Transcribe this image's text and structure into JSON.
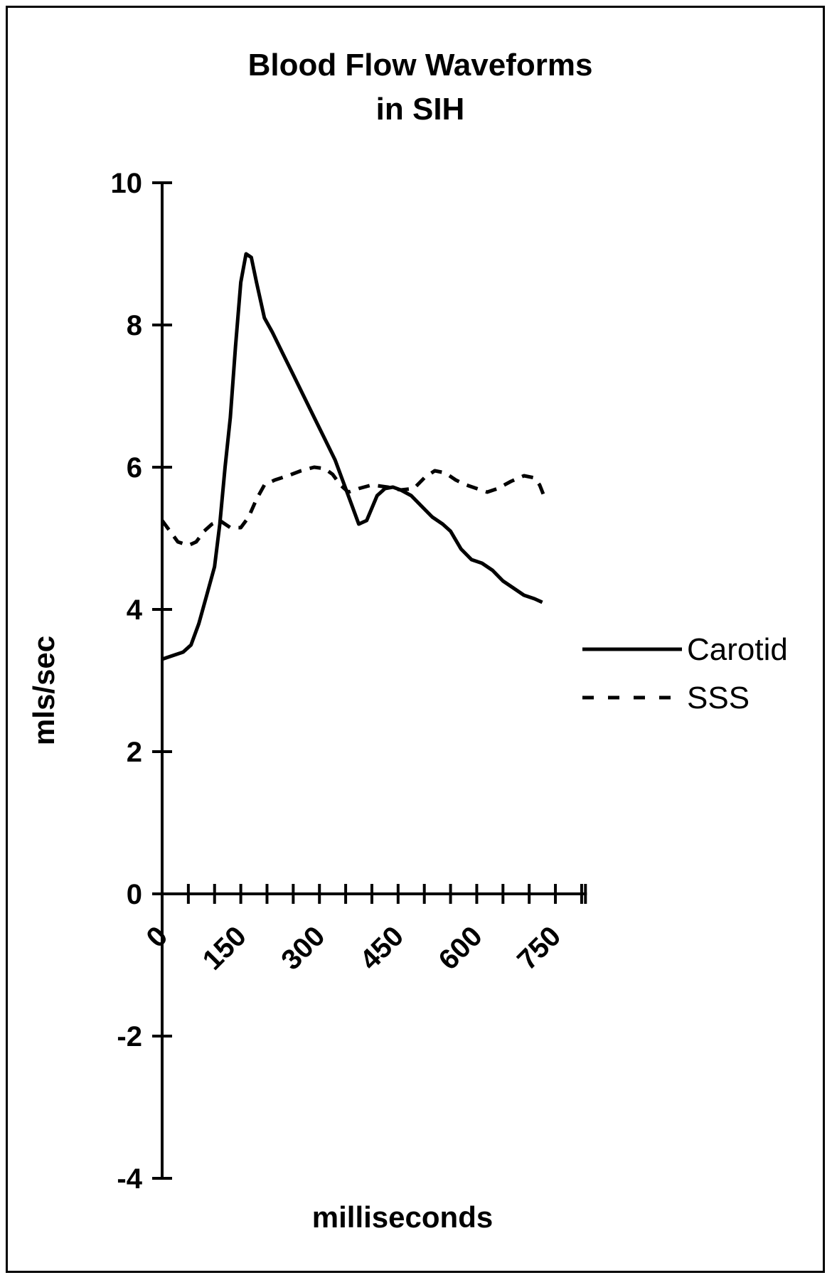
{
  "chart_data": {
    "type": "line",
    "title": [
      "Blood Flow Waveforms",
      "in SIH"
    ],
    "xlabel": "milliseconds",
    "ylabel": "mls/sec",
    "ylim": [
      -4,
      10
    ],
    "yticks": [
      10,
      8,
      6,
      4,
      2,
      0,
      -2,
      -4
    ],
    "xlim": [
      0,
      810
    ],
    "xticks_minor": [
      0,
      50,
      100,
      150,
      200,
      250,
      300,
      350,
      400,
      450,
      500,
      550,
      600,
      650,
      700,
      750,
      800
    ],
    "xtick_labels": [
      {
        "value": 0,
        "label": "0"
      },
      {
        "value": 150,
        "label": "150"
      },
      {
        "value": 300,
        "label": "300"
      },
      {
        "value": 450,
        "label": "450"
      },
      {
        "value": 600,
        "label": "600"
      },
      {
        "value": 750,
        "label": "750"
      }
    ],
    "grid": false,
    "legend_position": "right",
    "series": [
      {
        "name": "Carotid",
        "style": "solid",
        "color": "#000000",
        "points": [
          [
            0,
            3.3
          ],
          [
            20,
            3.35
          ],
          [
            40,
            3.4
          ],
          [
            55,
            3.5
          ],
          [
            70,
            3.8
          ],
          [
            85,
            4.2
          ],
          [
            100,
            4.6
          ],
          [
            110,
            5.2
          ],
          [
            120,
            6.0
          ],
          [
            130,
            6.7
          ],
          [
            140,
            7.7
          ],
          [
            150,
            8.6
          ],
          [
            160,
            9.0
          ],
          [
            170,
            8.95
          ],
          [
            180,
            8.6
          ],
          [
            195,
            8.1
          ],
          [
            210,
            7.9
          ],
          [
            230,
            7.6
          ],
          [
            250,
            7.3
          ],
          [
            270,
            7.0
          ],
          [
            290,
            6.7
          ],
          [
            310,
            6.4
          ],
          [
            330,
            6.1
          ],
          [
            345,
            5.8
          ],
          [
            360,
            5.5
          ],
          [
            375,
            5.2
          ],
          [
            390,
            5.25
          ],
          [
            410,
            5.6
          ],
          [
            425,
            5.7
          ],
          [
            440,
            5.72
          ],
          [
            455,
            5.68
          ],
          [
            475,
            5.6
          ],
          [
            495,
            5.45
          ],
          [
            515,
            5.3
          ],
          [
            535,
            5.2
          ],
          [
            550,
            5.1
          ],
          [
            570,
            4.85
          ],
          [
            590,
            4.7
          ],
          [
            610,
            4.65
          ],
          [
            630,
            4.55
          ],
          [
            650,
            4.4
          ],
          [
            670,
            4.3
          ],
          [
            690,
            4.2
          ],
          [
            710,
            4.15
          ],
          [
            725,
            4.1
          ]
        ]
      },
      {
        "name": "SSS",
        "style": "dashed",
        "color": "#000000",
        "points": [
          [
            0,
            5.25
          ],
          [
            15,
            5.1
          ],
          [
            30,
            4.95
          ],
          [
            50,
            4.9
          ],
          [
            65,
            4.95
          ],
          [
            80,
            5.1
          ],
          [
            95,
            5.2
          ],
          [
            110,
            5.25
          ],
          [
            130,
            5.15
          ],
          [
            150,
            5.15
          ],
          [
            165,
            5.3
          ],
          [
            180,
            5.55
          ],
          [
            195,
            5.75
          ],
          [
            215,
            5.82
          ],
          [
            240,
            5.88
          ],
          [
            265,
            5.95
          ],
          [
            290,
            6.0
          ],
          [
            310,
            5.98
          ],
          [
            325,
            5.9
          ],
          [
            340,
            5.75
          ],
          [
            355,
            5.65
          ],
          [
            375,
            5.7
          ],
          [
            400,
            5.75
          ],
          [
            430,
            5.72
          ],
          [
            455,
            5.68
          ],
          [
            480,
            5.7
          ],
          [
            500,
            5.85
          ],
          [
            520,
            5.95
          ],
          [
            540,
            5.92
          ],
          [
            560,
            5.82
          ],
          [
            580,
            5.75
          ],
          [
            600,
            5.7
          ],
          [
            620,
            5.65
          ],
          [
            640,
            5.7
          ],
          [
            665,
            5.8
          ],
          [
            690,
            5.88
          ],
          [
            710,
            5.85
          ],
          [
            720,
            5.75
          ],
          [
            728,
            5.6
          ]
        ]
      }
    ]
  }
}
